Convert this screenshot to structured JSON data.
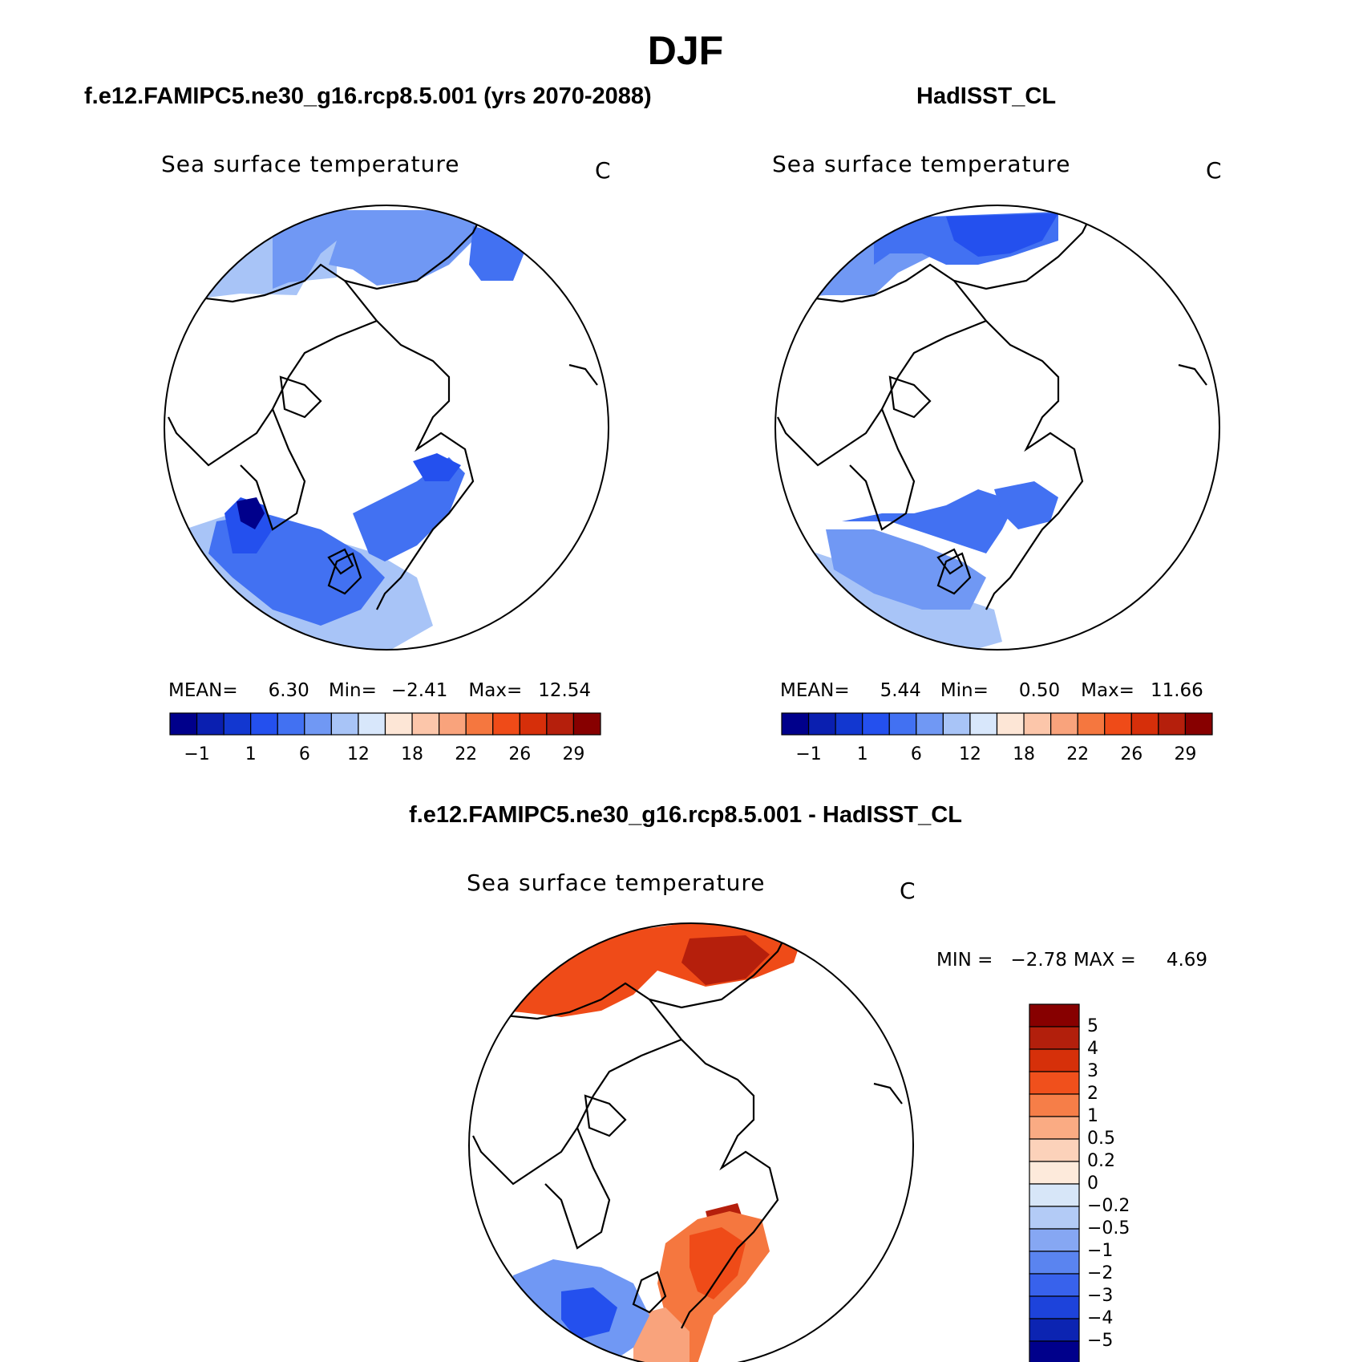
{
  "figure": {
    "title": "DJF"
  },
  "panels": {
    "model": {
      "heading": "f.e12.FAMIPC5.ne30_g16.rcp8.5.001 (yrs 2070-2088)",
      "variable": "Sea surface temperature",
      "units": "C",
      "stats": {
        "mean_label": "MEAN=",
        "mean": "6.30",
        "min_label": "Min=",
        "min": "−2.41",
        "max_label": "Max=",
        "max": "12.54"
      }
    },
    "obs": {
      "heading": "HadISST_CL",
      "variable": "Sea surface temperature",
      "units": "C",
      "stats": {
        "mean_label": "MEAN=",
        "mean": "5.44",
        "min_label": "Min=",
        "min": "0.50",
        "max_label": "Max=",
        "max": "11.66"
      }
    },
    "diff": {
      "heading": "f.e12.FAMIPC5.ne30_g16.rcp8.5.001 - HadISST_CL",
      "variable": "Sea surface temperature",
      "units": "C",
      "stats": {
        "min_label": "MIN =",
        "min": "−2.78",
        "max_label": "MAX =",
        "max": "4.69"
      }
    }
  },
  "colorbar_abs": {
    "colors": [
      "#00008b",
      "#0a1fb0",
      "#1237d0",
      "#2450ee",
      "#4271f2",
      "#7098f4",
      "#a8c4f7",
      "#d8e7fb",
      "#fde6d6",
      "#fcc6aa",
      "#f9a37c",
      "#f5773f",
      "#ef4b18",
      "#d62f0a",
      "#b51f0c",
      "#870000"
    ],
    "labels": [
      "−1",
      "1",
      "6",
      "12",
      "18",
      "22",
      "26",
      "29"
    ]
  },
  "colorbar_diff": {
    "colors_top_to_bottom": [
      "#870000",
      "#b21f0c",
      "#d6300a",
      "#f0501c",
      "#f67e48",
      "#faab83",
      "#fcd2ba",
      "#fdeadb",
      "#d7e6f8",
      "#b3cbf6",
      "#86a7f3",
      "#5a84f0",
      "#3862ec",
      "#1d43db",
      "#0c24b2",
      "#00008b"
    ],
    "labels": [
      "5",
      "4",
      "3",
      "2",
      "1",
      "0.5",
      "0.2",
      "0",
      "−0.2",
      "−0.5",
      "−1",
      "−2",
      "−3",
      "−4",
      "−5"
    ]
  }
}
